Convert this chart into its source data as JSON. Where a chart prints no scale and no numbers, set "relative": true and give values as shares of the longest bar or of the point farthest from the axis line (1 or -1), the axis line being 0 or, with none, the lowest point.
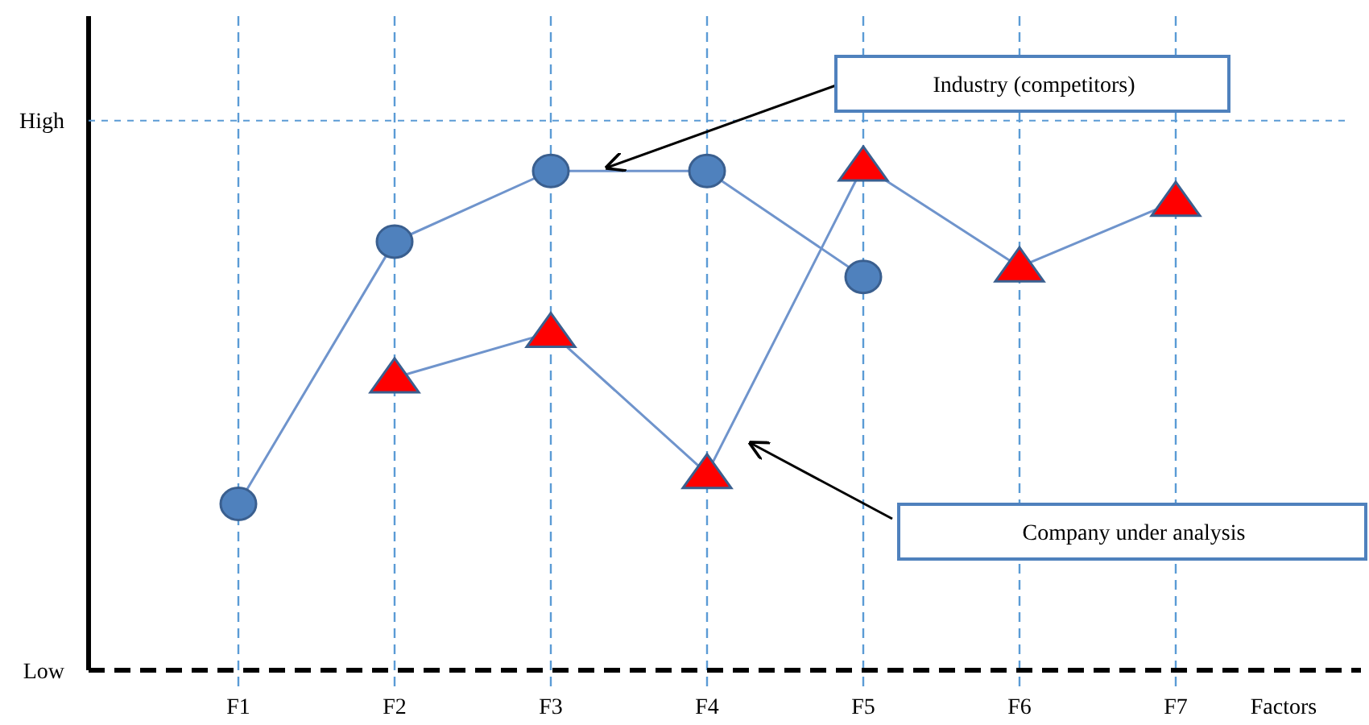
{
  "chart_data": {
    "type": "line",
    "xlabel": "Factors",
    "categories": [
      "F1",
      "F2",
      "F3",
      "F4",
      "F5",
      "F6",
      "F7"
    ],
    "relative": true,
    "series": [
      {
        "color": "#4f81bd",
        "marker": "circle",
        "values": [
          0.33,
          0.85,
          0.99,
          0.99,
          0.78,
          null,
          null
        ]
      },
      {
        "color": "#ff0000",
        "marker": "triangle",
        "values": [
          null,
          0.58,
          0.67,
          0.39,
          1,
          0.8,
          0.93
        ]
      }
    ],
    "ref_lines": [
      {
        "axis": "y",
        "value": 1.09,
        "label": "High",
        "color": "#5b9bd5",
        "line_style": "dashed"
      },
      {
        "axis": "y",
        "value": 0,
        "label": "Low",
        "color": "#000000",
        "line_style": "dashed"
      }
    ],
    "grid": "x",
    "line_style": "solid",
    "annotations": [
      "Industry (competitors)",
      "Company under analysis"
    ]
  }
}
